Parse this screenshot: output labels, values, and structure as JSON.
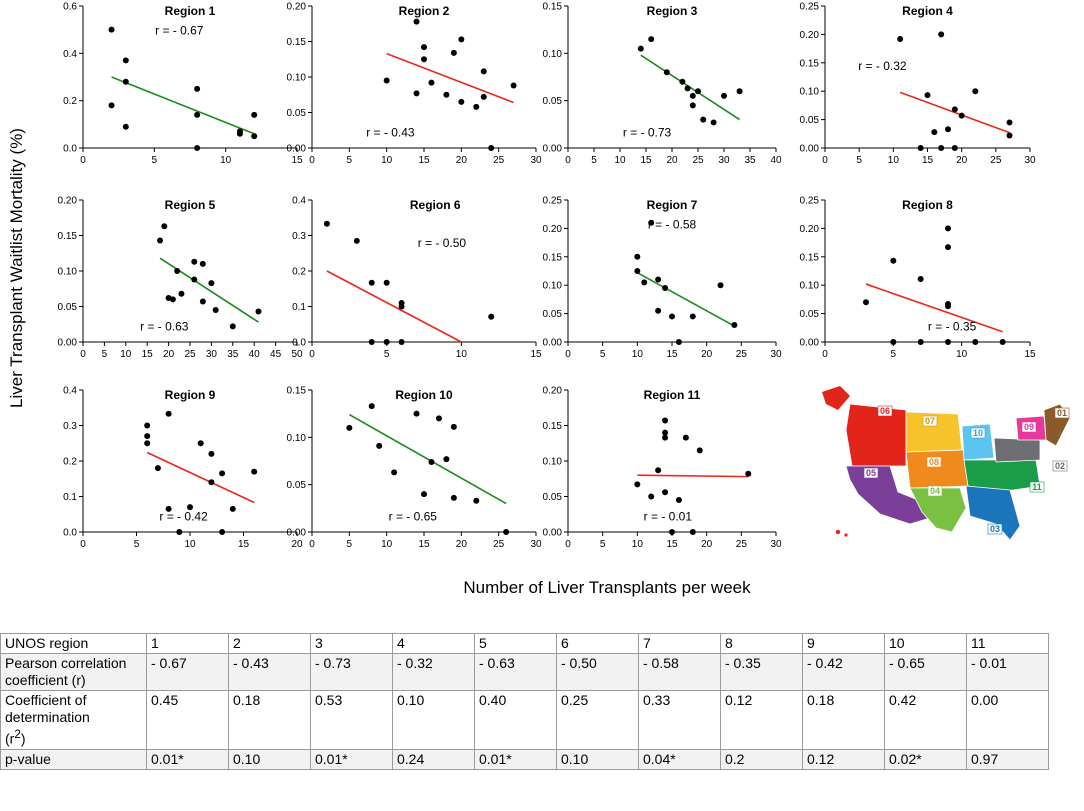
{
  "figure": {
    "y_axis_title": "Liver Transplant Waitlist Mortality (%)",
    "x_axis_title": "Number of Liver Transplants per week"
  },
  "chart_data": [
    {
      "type": "scatter",
      "title": "Region 1",
      "r_label": "r = - 0.67",
      "trend_color": "#1a8c1a",
      "xlim": [
        0,
        15
      ],
      "xticks": [
        0,
        5,
        10,
        15
      ],
      "ylim": [
        0,
        0.6
      ],
      "yticks": [
        0.0,
        0.2,
        0.4,
        0.6
      ],
      "ytick_labels": [
        "0.0",
        "0.2",
        "0.4",
        "0.6"
      ],
      "points": [
        [
          2,
          0.5
        ],
        [
          2,
          0.18
        ],
        [
          3,
          0.37
        ],
        [
          3,
          0.28
        ],
        [
          3,
          0.09
        ],
        [
          8,
          0.25
        ],
        [
          8,
          0.14
        ],
        [
          8,
          0.0
        ],
        [
          11,
          0.07
        ],
        [
          11,
          0.06
        ],
        [
          12,
          0.14
        ],
        [
          12,
          0.05
        ]
      ],
      "trend": [
        [
          2,
          0.3
        ],
        [
          12,
          0.06
        ]
      ]
    },
    {
      "type": "scatter",
      "title": "Region 2",
      "r_label": "r = - 0.43",
      "trend_color": "#e8291b",
      "xlim": [
        0,
        30
      ],
      "xticks": [
        0,
        5,
        10,
        15,
        20,
        25,
        30
      ],
      "ylim": [
        0,
        0.2
      ],
      "yticks": [
        0,
        0.05,
        0.1,
        0.15,
        0.2
      ],
      "ytick_labels": [
        "0.00",
        "0.05",
        "0.10",
        "0.15",
        "0.20"
      ],
      "points": [
        [
          10,
          0.095
        ],
        [
          14,
          0.178
        ],
        [
          15,
          0.142
        ],
        [
          15,
          0.125
        ],
        [
          14,
          0.077
        ],
        [
          16,
          0.092
        ],
        [
          18,
          0.075
        ],
        [
          19,
          0.134
        ],
        [
          20,
          0.153
        ],
        [
          20,
          0.065
        ],
        [
          22,
          0.058
        ],
        [
          23,
          0.072
        ],
        [
          23,
          0.108
        ],
        [
          24,
          0.0
        ],
        [
          27,
          0.088
        ]
      ],
      "trend": [
        [
          10,
          0.133
        ],
        [
          27,
          0.064
        ]
      ]
    },
    {
      "type": "scatter",
      "title": "Region 3",
      "r_label": "r = - 0.73",
      "trend_color": "#1a8c1a",
      "xlim": [
        0,
        40
      ],
      "xticks": [
        0,
        5,
        10,
        15,
        20,
        25,
        30,
        35,
        40
      ],
      "ylim": [
        0,
        0.15
      ],
      "yticks": [
        0,
        0.05,
        0.1,
        0.15
      ],
      "ytick_labels": [
        "0.00",
        "0.05",
        "0.10",
        "0.15"
      ],
      "points": [
        [
          14,
          0.105
        ],
        [
          16,
          0.115
        ],
        [
          19,
          0.08
        ],
        [
          22,
          0.07
        ],
        [
          23,
          0.063
        ],
        [
          24,
          0.055
        ],
        [
          24,
          0.045
        ],
        [
          25,
          0.06
        ],
        [
          26,
          0.03
        ],
        [
          28,
          0.027
        ],
        [
          30,
          0.055
        ],
        [
          33,
          0.06
        ]
      ],
      "trend": [
        [
          14,
          0.098
        ],
        [
          33,
          0.03
        ]
      ]
    },
    {
      "type": "scatter",
      "title": "Region 4",
      "r_label": "r = - 0.32",
      "trend_color": "#e8291b",
      "xlim": [
        0,
        30
      ],
      "xticks": [
        0,
        5,
        10,
        15,
        20,
        25,
        30
      ],
      "ylim": [
        0,
        0.25
      ],
      "yticks": [
        0,
        0.05,
        0.1,
        0.15,
        0.2,
        0.25
      ],
      "ytick_labels": [
        "0.00",
        "0.05",
        "0.10",
        "0.15",
        "0.20",
        "0.25"
      ],
      "points": [
        [
          11,
          0.192
        ],
        [
          14,
          0.0
        ],
        [
          15,
          0.093
        ],
        [
          16,
          0.028
        ],
        [
          17,
          0.2
        ],
        [
          17,
          0.0
        ],
        [
          18,
          0.033
        ],
        [
          19,
          0.068
        ],
        [
          19,
          0.0
        ],
        [
          20,
          0.057
        ],
        [
          22,
          0.1
        ],
        [
          27,
          0.045
        ],
        [
          27,
          0.022
        ]
      ],
      "trend": [
        [
          11,
          0.098
        ],
        [
          27,
          0.027
        ]
      ]
    },
    {
      "type": "scatter",
      "title": "Region 5",
      "r_label": "r = - 0.63",
      "trend_color": "#1a8c1a",
      "xlim": [
        0,
        50
      ],
      "xticks": [
        0,
        5,
        10,
        15,
        20,
        25,
        30,
        35,
        40,
        45,
        50
      ],
      "ylim": [
        0,
        0.2
      ],
      "yticks": [
        0,
        0.05,
        0.1,
        0.15,
        0.2
      ],
      "ytick_labels": [
        "0.00",
        "0.05",
        "0.10",
        "0.15",
        "0.20"
      ],
      "points": [
        [
          18,
          0.143
        ],
        [
          19,
          0.163
        ],
        [
          20,
          0.062
        ],
        [
          21,
          0.06
        ],
        [
          22,
          0.1
        ],
        [
          23,
          0.068
        ],
        [
          26,
          0.113
        ],
        [
          26,
          0.088
        ],
        [
          28,
          0.057
        ],
        [
          28,
          0.11
        ],
        [
          30,
          0.083
        ],
        [
          31,
          0.045
        ],
        [
          35,
          0.022
        ],
        [
          41,
          0.043
        ]
      ],
      "trend": [
        [
          18,
          0.118
        ],
        [
          41,
          0.028
        ]
      ]
    },
    {
      "type": "scatter",
      "title": "Region 6",
      "r_label": "r = - 0.50",
      "trend_color": "#e8291b",
      "xlim": [
        0,
        15
      ],
      "xticks": [
        0,
        5,
        10,
        15
      ],
      "ylim": [
        0,
        0.4
      ],
      "yticks": [
        0,
        0.1,
        0.2,
        0.3,
        0.4
      ],
      "ytick_labels": [
        "0.0",
        "0.1",
        "0.2",
        "0.3",
        "0.4"
      ],
      "points": [
        [
          1,
          0.333
        ],
        [
          3,
          0.285
        ],
        [
          4,
          0.167
        ],
        [
          4,
          0.0
        ],
        [
          5,
          0.167
        ],
        [
          5,
          0.0
        ],
        [
          6,
          0.11
        ],
        [
          6,
          0.1
        ],
        [
          6,
          0.0
        ],
        [
          12,
          0.071
        ]
      ],
      "trend": [
        [
          1,
          0.2
        ],
        [
          10,
          0.0
        ]
      ]
    },
    {
      "type": "scatter",
      "title": "Region 7",
      "r_label": "r = - 0.58",
      "trend_color": "#1a8c1a",
      "xlim": [
        0,
        30
      ],
      "xticks": [
        0,
        5,
        10,
        15,
        20,
        25,
        30
      ],
      "ylim": [
        0,
        0.25
      ],
      "yticks": [
        0,
        0.05,
        0.1,
        0.15,
        0.2,
        0.25
      ],
      "ytick_labels": [
        "0.00",
        "0.05",
        "0.10",
        "0.15",
        "0.20",
        "0.25"
      ],
      "points": [
        [
          10,
          0.15
        ],
        [
          10,
          0.125
        ],
        [
          11,
          0.105
        ],
        [
          12,
          0.21
        ],
        [
          13,
          0.11
        ],
        [
          13,
          0.055
        ],
        [
          14,
          0.095
        ],
        [
          15,
          0.045
        ],
        [
          16,
          0.0
        ],
        [
          18,
          0.045
        ],
        [
          22,
          0.1
        ],
        [
          24,
          0.03
        ]
      ],
      "trend": [
        [
          10,
          0.122
        ],
        [
          24,
          0.028
        ]
      ]
    },
    {
      "type": "scatter",
      "title": "Region 8",
      "r_label": "r = - 0.35",
      "trend_color": "#e8291b",
      "xlim": [
        0,
        15
      ],
      "xticks": [
        0,
        5,
        10,
        15
      ],
      "ylim": [
        0,
        0.25
      ],
      "yticks": [
        0,
        0.05,
        0.1,
        0.15,
        0.2,
        0.25
      ],
      "ytick_labels": [
        "0.00",
        "0.05",
        "0.10",
        "0.15",
        "0.20",
        "0.25"
      ],
      "points": [
        [
          3,
          0.07
        ],
        [
          5,
          0.143
        ],
        [
          5,
          0.0
        ],
        [
          7,
          0.111
        ],
        [
          7,
          0.0
        ],
        [
          9,
          0.2
        ],
        [
          9,
          0.167
        ],
        [
          9,
          0.067
        ],
        [
          9,
          0.063
        ],
        [
          9,
          0.0
        ],
        [
          11,
          0.0
        ],
        [
          13,
          0.0
        ]
      ],
      "trend": [
        [
          3,
          0.102
        ],
        [
          13,
          0.018
        ]
      ]
    },
    {
      "type": "scatter",
      "title": "Region 9",
      "r_label": "r = - 0.42",
      "trend_color": "#e8291b",
      "xlim": [
        0,
        20
      ],
      "xticks": [
        0,
        5,
        10,
        15,
        20
      ],
      "ylim": [
        0,
        0.4
      ],
      "yticks": [
        0,
        0.1,
        0.2,
        0.3,
        0.4
      ],
      "ytick_labels": [
        "0.0",
        "0.1",
        "0.2",
        "0.3",
        "0.4"
      ],
      "points": [
        [
          6,
          0.3
        ],
        [
          6,
          0.27
        ],
        [
          6,
          0.25
        ],
        [
          7,
          0.18
        ],
        [
          8,
          0.333
        ],
        [
          8,
          0.065
        ],
        [
          9,
          0.0
        ],
        [
          10,
          0.07
        ],
        [
          11,
          0.25
        ],
        [
          12,
          0.22
        ],
        [
          12,
          0.14
        ],
        [
          13,
          0.165
        ],
        [
          13,
          0.0
        ],
        [
          14,
          0.065
        ],
        [
          16,
          0.17
        ]
      ],
      "trend": [
        [
          6,
          0.224
        ],
        [
          16,
          0.083
        ]
      ]
    },
    {
      "type": "scatter",
      "title": "Region 10",
      "r_label": "r = - 0.65",
      "trend_color": "#1a8c1a",
      "xlim": [
        0,
        30
      ],
      "xticks": [
        0,
        5,
        10,
        15,
        20,
        25,
        30
      ],
      "ylim": [
        0,
        0.15
      ],
      "yticks": [
        0,
        0.05,
        0.1,
        0.15
      ],
      "ytick_labels": [
        "0.00",
        "0.05",
        "0.10",
        "0.15"
      ],
      "points": [
        [
          5,
          0.11
        ],
        [
          8,
          0.133
        ],
        [
          9,
          0.091
        ],
        [
          11,
          0.063
        ],
        [
          14,
          0.125
        ],
        [
          15,
          0.04
        ],
        [
          16,
          0.074
        ],
        [
          17,
          0.12
        ],
        [
          18,
          0.077
        ],
        [
          19,
          0.111
        ],
        [
          19,
          0.036
        ],
        [
          22,
          0.033
        ],
        [
          26,
          0.0
        ]
      ],
      "trend": [
        [
          5,
          0.124
        ],
        [
          26,
          0.03
        ]
      ]
    },
    {
      "type": "scatter",
      "title": "Region 11",
      "r_label": "r = - 0.01",
      "trend_color": "#e8291b",
      "xlim": [
        0,
        30
      ],
      "xticks": [
        0,
        5,
        10,
        15,
        20,
        25,
        30
      ],
      "ylim": [
        0,
        0.2
      ],
      "yticks": [
        0,
        0.05,
        0.1,
        0.15,
        0.2
      ],
      "ytick_labels": [
        "0.00",
        "0.05",
        "0.10",
        "0.15",
        "0.20"
      ],
      "points": [
        [
          10,
          0.067
        ],
        [
          12,
          0.05
        ],
        [
          13,
          0.087
        ],
        [
          14,
          0.157
        ],
        [
          14,
          0.14
        ],
        [
          14,
          0.133
        ],
        [
          14,
          0.056
        ],
        [
          15,
          0.0
        ],
        [
          16,
          0.045
        ],
        [
          17,
          0.133
        ],
        [
          18,
          0.0
        ],
        [
          19,
          0.115
        ],
        [
          26,
          0.082
        ]
      ],
      "trend": [
        [
          10,
          0.08
        ],
        [
          26,
          0.078
        ]
      ]
    }
  ],
  "map": {
    "labels": [
      "01",
      "02",
      "03",
      "04",
      "05",
      "06",
      "07",
      "08",
      "09",
      "10",
      "11"
    ]
  },
  "table": {
    "columns": [
      "1",
      "2",
      "3",
      "4",
      "5",
      "6",
      "7",
      "8",
      "9",
      "10",
      "11"
    ],
    "rows": [
      {
        "label": "UNOS region",
        "values": [
          "1",
          "2",
          "3",
          "4",
          "5",
          "6",
          "7",
          "8",
          "9",
          "10",
          "11"
        ]
      },
      {
        "label": "Pearson correlation coefficient (r)",
        "values": [
          "- 0.67",
          "- 0.43",
          "- 0.73",
          "- 0.32",
          "- 0.63",
          "- 0.50",
          "- 0.58",
          "- 0.35",
          "- 0.42",
          "- 0.65",
          "- 0.01"
        ]
      },
      {
        "label_main": "Coefficient of determination",
        "label_r": "(r",
        "label_sup": "2",
        "label_close": ")",
        "values": [
          "0.45",
          "0.18",
          "0.53",
          "0.10",
          "0.40",
          "0.25",
          "0.33",
          "0.12",
          "0.18",
          "0.42",
          "0.00"
        ]
      },
      {
        "label": "p-value",
        "values": [
          "0.01*",
          "0.10",
          "0.01*",
          "0.24",
          "0.01*",
          "0.10",
          "0.04*",
          "0.2",
          "0.12",
          "0.02*",
          "0.97"
        ]
      }
    ]
  }
}
